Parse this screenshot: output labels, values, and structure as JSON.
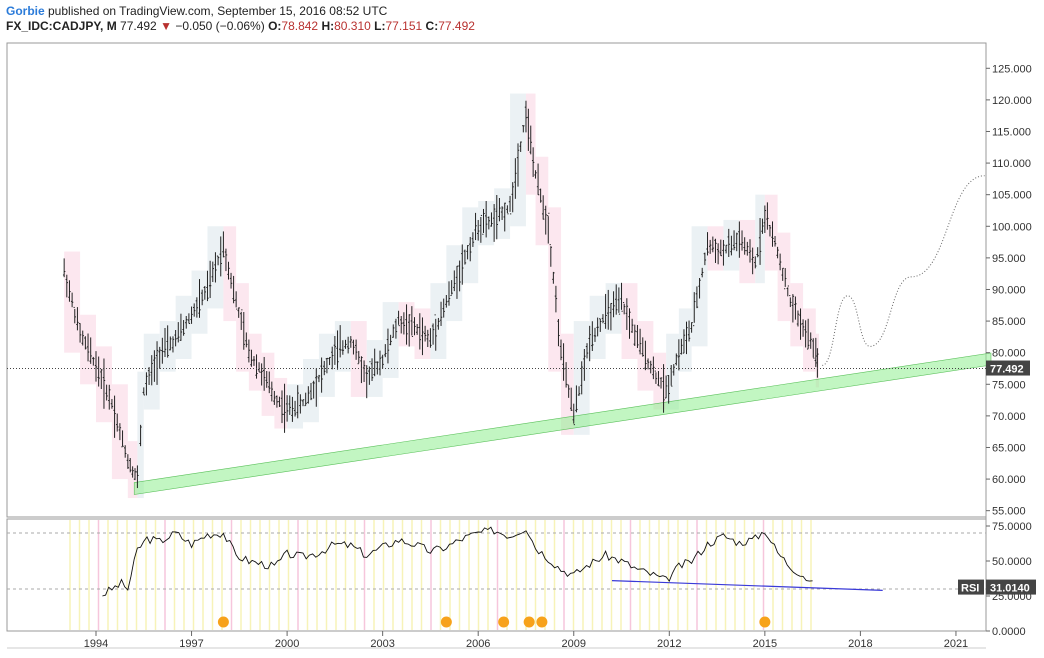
{
  "header": {
    "author": "Gorbie",
    "published_text": " published on TradingView.com, September 15, 2016 08:52 UTC",
    "symbol": "FX_IDC:CADJPY, M",
    "price": "77.492",
    "down_arrow": "▼",
    "change": "−0.050 (−0.06%)",
    "o_label": "O:",
    "o_value": "78.842",
    "h_label": "H:",
    "h_value": "80.310",
    "l_label": "L:",
    "l_value": "77.151",
    "c_label": "C:",
    "c_value": "77.492"
  },
  "colors": {
    "up_box": "#e8eef2",
    "down_box": "#fbe3ec",
    "trend_band": "#90ee90",
    "candle": "#222222",
    "rsi_trend": "#3a3ad8",
    "marker": "#f7a21b",
    "price_tag_bg": "#444444"
  },
  "chart_data": [
    {
      "type": "candlestick",
      "symbol": "FX_IDC:CADJPY",
      "interval": "M",
      "y_ticks": [
        "125.000",
        "120.000",
        "115.000",
        "110.000",
        "105.000",
        "100.000",
        "95.000",
        "90.000",
        "85.000",
        "80.000",
        "75.000",
        "70.000",
        "65.000",
        "60.000",
        "55.000"
      ],
      "ylim": [
        54,
        129
      ],
      "x_ticks": [
        "1994",
        "1997",
        "2000",
        "2003",
        "2006",
        "2009",
        "2012",
        "2015",
        "2018",
        "2021"
      ],
      "last_price_label": "77.492",
      "x": [
        1993.0,
        1993.5,
        1994.0,
        1994.5,
        1995.0,
        1995.3,
        1995.5,
        1996.0,
        1996.5,
        1997.0,
        1997.5,
        1998.0,
        1998.4,
        1998.8,
        1999.2,
        1999.6,
        2000.0,
        2000.5,
        2001.0,
        2001.5,
        2002.0,
        2002.5,
        2003.0,
        2003.5,
        2004.0,
        2004.5,
        2005.0,
        2005.5,
        2006.0,
        2006.5,
        2007.0,
        2007.5,
        2007.8,
        2008.2,
        2008.6,
        2009.0,
        2009.5,
        2010.0,
        2010.5,
        2011.0,
        2011.5,
        2011.9,
        2012.3,
        2012.7,
        2013.2,
        2013.7,
        2014.2,
        2014.7,
        2015.0,
        2015.4,
        2015.8,
        2016.2,
        2016.6,
        2016.7
      ],
      "close": [
        93,
        83,
        78,
        72,
        63,
        60,
        74,
        80,
        82,
        86,
        90,
        97,
        88,
        80,
        77,
        73,
        71,
        72,
        76,
        80,
        82,
        76,
        79,
        85,
        84,
        82,
        88,
        94,
        100,
        101,
        103,
        118,
        108,
        100,
        80,
        70,
        82,
        86,
        88,
        82,
        77,
        74,
        80,
        84,
        97,
        96,
        98,
        94,
        102,
        96,
        88,
        84,
        80,
        77.5
      ],
      "trend_band": {
        "start": {
          "x": 1995.2,
          "y": 58.5
        },
        "end": {
          "x": 2022.1,
          "y": 79
        }
      },
      "projection_dotted": [
        [
          2016.8,
          78
        ],
        [
          2017.6,
          89
        ],
        [
          2018.3,
          81
        ],
        [
          2019.6,
          92
        ],
        [
          2021.9,
          108
        ]
      ]
    },
    {
      "type": "line",
      "name": "RSI",
      "y_ticks": [
        "75.0000",
        "50.0000",
        "25.0000",
        "0.0000"
      ],
      "ylim": [
        0,
        80
      ],
      "last_value_label": "31.0140",
      "levels": [
        30,
        70
      ],
      "x": [
        1994.2,
        1994.5,
        1994.8,
        1995.0,
        1995.3,
        1995.6,
        1996.0,
        1996.5,
        1997.0,
        1997.5,
        1998.0,
        1998.4,
        1998.8,
        1999.2,
        1999.6,
        2000.0,
        2000.5,
        2001.0,
        2001.5,
        2002.0,
        2002.5,
        2003.0,
        2003.5,
        2004.0,
        2004.5,
        2005.0,
        2005.5,
        2006.0,
        2006.5,
        2007.0,
        2007.5,
        2007.8,
        2008.2,
        2008.6,
        2009.0,
        2009.5,
        2010.0,
        2010.5,
        2011.0,
        2011.5,
        2011.9,
        2012.3,
        2012.7,
        2013.2,
        2013.7,
        2014.2,
        2014.7,
        2015.0,
        2015.4,
        2015.8,
        2016.2,
        2016.6
      ],
      "values": [
        26,
        30,
        34,
        30,
        58,
        66,
        64,
        70,
        62,
        69,
        70,
        54,
        50,
        48,
        46,
        55,
        53,
        56,
        62,
        61,
        54,
        60,
        65,
        62,
        57,
        60,
        66,
        70,
        72,
        68,
        74,
        60,
        52,
        44,
        40,
        48,
        54,
        50,
        44,
        40,
        36,
        46,
        50,
        62,
        68,
        63,
        66,
        72,
        56,
        46,
        40,
        31
      ],
      "trend_line": {
        "start": {
          "x": 2010.2,
          "y": 36
        },
        "end": {
          "x": 2018.7,
          "y": 29
        }
      },
      "markers_x": [
        1998.0,
        2005.0,
        2006.8,
        2007.6,
        2008.0,
        2015.0
      ]
    }
  ]
}
